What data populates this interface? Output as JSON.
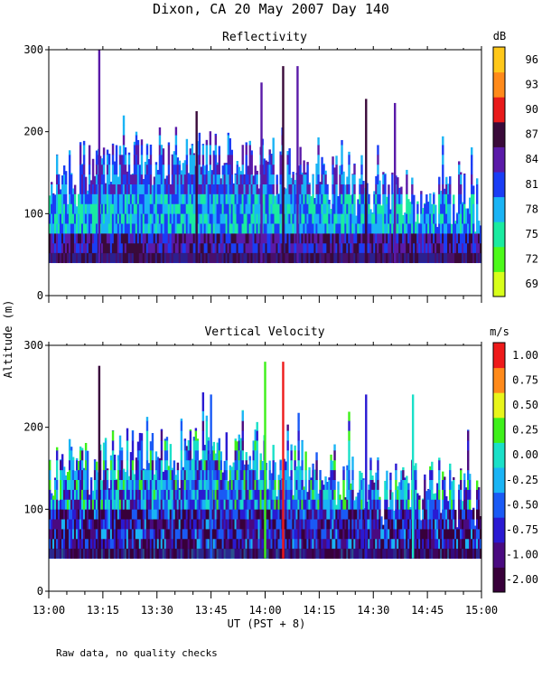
{
  "figure": {
    "title": "Dixon, CA 20 May 2007  Day 140",
    "ylabel": "Altitude (m)",
    "xlabel": "UT  (PST + 8)",
    "note": "Raw data, no quality checks"
  },
  "chart_data": [
    {
      "type": "heatmap",
      "title": "Reflectivity",
      "xlabel": "UT  (PST + 8)",
      "ylabel": "Altitude (m)",
      "x_ticks": [
        "13:00",
        "13:15",
        "13:30",
        "13:45",
        "14:00",
        "14:15",
        "14:30",
        "14:45",
        "15:00"
      ],
      "y_ticks": [
        0,
        100,
        200,
        300
      ],
      "xlim": [
        "13:00",
        "15:00"
      ],
      "ylim": [
        0,
        300
      ],
      "data_floor_m": 40,
      "colorbar": {
        "unit": "dB",
        "labels": [
          "69",
          "72",
          "75",
          "78",
          "81",
          "84",
          "87",
          "90",
          "93",
          "96"
        ],
        "colors": [
          "#d8ff1a",
          "#4dfa1a",
          "#1aeba0",
          "#1ab4f5",
          "#1a3df5",
          "#5a1aa8",
          "#3a0a3a",
          "#e81a1a",
          "#ff8a1a",
          "#ffc81a"
        ]
      },
      "spikes": [
        {
          "t": "13:14",
          "top_m": 300
        },
        {
          "t": "13:41",
          "top_m": 225
        },
        {
          "t": "13:59",
          "top_m": 260
        },
        {
          "t": "14:05",
          "top_m": 280
        },
        {
          "t": "14:09",
          "top_m": 280
        },
        {
          "t": "14:28",
          "top_m": 240
        },
        {
          "t": "14:36",
          "top_m": 235
        }
      ]
    },
    {
      "type": "heatmap",
      "title": "Vertical Velocity",
      "xlabel": "UT  (PST + 8)",
      "ylabel": "Altitude (m)",
      "x_ticks": [
        "13:00",
        "13:15",
        "13:30",
        "13:45",
        "14:00",
        "14:15",
        "14:30",
        "14:45",
        "15:00"
      ],
      "y_ticks": [
        0,
        100,
        200,
        300
      ],
      "xlim": [
        "13:00",
        "15:00"
      ],
      "ylim": [
        0,
        300
      ],
      "data_floor_m": 40,
      "colorbar": {
        "unit": "m/s",
        "labels": [
          "-2.00",
          "-1.00",
          "-0.75",
          "-0.50",
          "-0.25",
          "0.00",
          "0.25",
          "0.50",
          "0.75",
          "1.00"
        ],
        "colors": [
          "#38003a",
          "#4a0a80",
          "#2a1ad2",
          "#1a5af5",
          "#1ab4f5",
          "#1ae0c8",
          "#3ef01a",
          "#e8f51a",
          "#ff8a1a",
          "#ee1a1a"
        ]
      },
      "spikes": [
        {
          "t": "13:14",
          "top_m": 275
        },
        {
          "t": "13:45",
          "top_m": 240
        },
        {
          "t": "14:00",
          "top_m": 280
        },
        {
          "t": "14:05",
          "top_m": 280
        },
        {
          "t": "14:28",
          "top_m": 240
        },
        {
          "t": "14:41",
          "top_m": 240
        }
      ]
    }
  ]
}
